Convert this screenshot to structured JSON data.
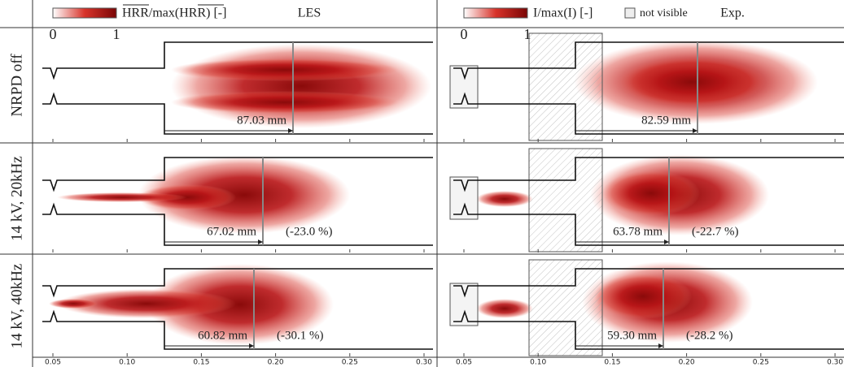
{
  "header": {
    "les": {
      "colorbar_label": "HRR/max(HRR) [-]",
      "colorbar_min": "0",
      "colorbar_max": "1",
      "title": "LES"
    },
    "exp": {
      "colorbar_label": "I/max(I) [-]",
      "colorbar_min": "0",
      "colorbar_max": "1",
      "legend_not_visible": "not visible",
      "title": "Exp."
    }
  },
  "rows": [
    {
      "label": "NRPD off",
      "les": {
        "length": "87.03 mm"
      },
      "exp": {
        "length": "82.59 mm"
      }
    },
    {
      "label": "14 kV, 20kHz",
      "les": {
        "length": "67.02 mm",
        "change": "(-23.0 %)"
      },
      "exp": {
        "length": "63.78 mm",
        "change": "(-22.7 %)"
      }
    },
    {
      "label": "14 kV, 40kHz",
      "les": {
        "length": "60.82 mm",
        "change": "(-30.1 %)"
      },
      "exp": {
        "length": "59.30 mm",
        "change": "(-28.2 %)"
      }
    }
  ],
  "x_ticks": [
    "0.05",
    "0.10",
    "0.15",
    "0.20",
    "0.25",
    "0.30"
  ]
}
